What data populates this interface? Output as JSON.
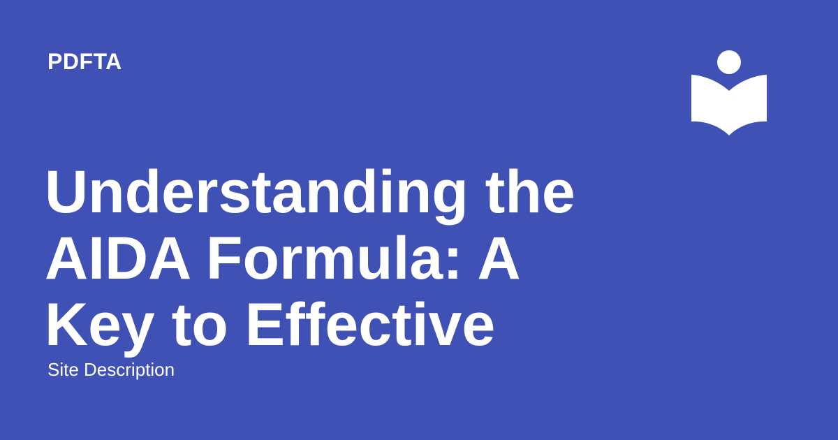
{
  "brand": {
    "site_name": "PDFTA",
    "logo_icon": "reader-book-icon",
    "background_color": "#3f51b5",
    "text_color": "#ffffff"
  },
  "article": {
    "title_lines": [
      "Understanding the",
      "AIDA Formula: A",
      "Key to Effective"
    ],
    "description": "Site Description"
  }
}
